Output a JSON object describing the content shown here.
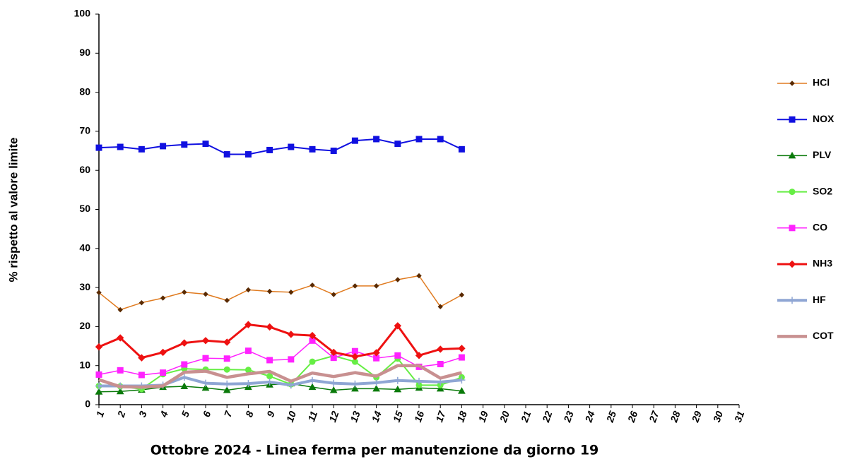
{
  "chart_data": {
    "type": "line",
    "x_label": "Ottobre 2024 - Linea ferma per manutenzione da giorno 19",
    "y_label": "% rispetto al valore limite",
    "categories": [
      "1",
      "2",
      "3",
      "4",
      "5",
      "6",
      "7",
      "8",
      "9",
      "10",
      "11",
      "12",
      "13",
      "14",
      "15",
      "16",
      "17",
      "18",
      "19",
      "20",
      "21",
      "22",
      "23",
      "24",
      "25",
      "26",
      "27",
      "28",
      "29",
      "30",
      "31"
    ],
    "ylim": [
      0,
      100
    ],
    "yticks": [
      0,
      10,
      20,
      30,
      40,
      50,
      60,
      70,
      80,
      90,
      100
    ],
    "grid": false,
    "legend": "right",
    "series": [
      {
        "name": "HCl",
        "color": "#e07b20",
        "marker": "diamond",
        "marker_color": "#5a2a00",
        "line_width": 1.5,
        "values": [
          28.7,
          24.3,
          26.1,
          27.3,
          28.8,
          28.3,
          26.7,
          29.4,
          29.0,
          28.8,
          30.6,
          28.2,
          30.4,
          30.4,
          32.0,
          33.0,
          25.1,
          28.1,
          null,
          null,
          null,
          null,
          null,
          null,
          null,
          null,
          null,
          null,
          null,
          null,
          null
        ]
      },
      {
        "name": "NOX",
        "color": "#1010e0",
        "marker": "square",
        "marker_color": "#1010e0",
        "line_width": 2,
        "values": [
          65.8,
          66.0,
          65.4,
          66.2,
          66.6,
          66.8,
          64.1,
          64.1,
          65.2,
          66.0,
          65.4,
          65.0,
          67.6,
          68.0,
          66.8,
          68.0,
          68.0,
          65.4,
          null,
          null,
          null,
          null,
          null,
          null,
          null,
          null,
          null,
          null,
          null,
          null,
          null
        ]
      },
      {
        "name": "PLV",
        "color": "#0a7a0a",
        "marker": "triangle",
        "marker_color": "#0a7a0a",
        "line_width": 1.5,
        "values": [
          3.3,
          3.4,
          3.8,
          4.5,
          4.7,
          4.3,
          3.7,
          4.5,
          5.1,
          5.4,
          4.5,
          3.7,
          4.1,
          4.1,
          3.9,
          4.3,
          4.1,
          3.5,
          null,
          null,
          null,
          null,
          null,
          null,
          null,
          null,
          null,
          null,
          null,
          null,
          null
        ]
      },
      {
        "name": "SO2",
        "color": "#66ee44",
        "marker": "circle",
        "marker_color": "#66ee44",
        "line_width": 2,
        "values": [
          4.8,
          4.7,
          4.0,
          7.8,
          9.2,
          9.0,
          9.0,
          8.9,
          7.3,
          5.2,
          11.0,
          12.5,
          11.0,
          7.0,
          11.8,
          5.0,
          5.0,
          7.0,
          null,
          null,
          null,
          null,
          null,
          null,
          null,
          null,
          null,
          null,
          null,
          null,
          null
        ]
      },
      {
        "name": "CO",
        "color": "#ff22ff",
        "marker": "square",
        "marker_color": "#ff22ff",
        "line_width": 1.5,
        "values": [
          7.7,
          8.8,
          7.6,
          8.2,
          10.3,
          11.9,
          11.8,
          13.8,
          11.4,
          11.6,
          16.4,
          12.0,
          13.7,
          11.9,
          12.6,
          9.7,
          10.4,
          12.1,
          null,
          null,
          null,
          null,
          null,
          null,
          null,
          null,
          null,
          null,
          null,
          null,
          null
        ]
      },
      {
        "name": "NH3",
        "color": "#ee1111",
        "marker": "diamond",
        "marker_color": "#ee1111",
        "line_width": 3,
        "values": [
          14.8,
          17.1,
          12.0,
          13.4,
          15.8,
          16.4,
          16.0,
          20.5,
          19.9,
          18.0,
          17.7,
          13.4,
          12.3,
          13.3,
          20.2,
          12.6,
          14.2,
          14.4,
          null,
          null,
          null,
          null,
          null,
          null,
          null,
          null,
          null,
          null,
          null,
          null,
          null
        ]
      },
      {
        "name": "HF",
        "color": "#8fa6d4",
        "marker": "plus",
        "marker_color": "#8fa6d4",
        "line_width": 4,
        "values": [
          4.8,
          4.8,
          4.8,
          5.0,
          7.0,
          5.5,
          5.3,
          5.4,
          5.8,
          5.0,
          6.2,
          5.5,
          5.3,
          5.6,
          6.2,
          6.0,
          5.8,
          6.3,
          null,
          null,
          null,
          null,
          null,
          null,
          null,
          null,
          null,
          null,
          null,
          null,
          null
        ]
      },
      {
        "name": "COT",
        "color": "#c89090",
        "marker": "none",
        "marker_color": "#c89090",
        "line_width": 4.5,
        "values": [
          6.4,
          4.6,
          4.5,
          4.8,
          8.3,
          8.6,
          7.0,
          7.9,
          8.5,
          6.0,
          8.1,
          7.2,
          8.2,
          7.3,
          10.0,
          10.0,
          6.8,
          8.2,
          null,
          null,
          null,
          null,
          null,
          null,
          null,
          null,
          null,
          null,
          null,
          null,
          null
        ]
      }
    ]
  }
}
